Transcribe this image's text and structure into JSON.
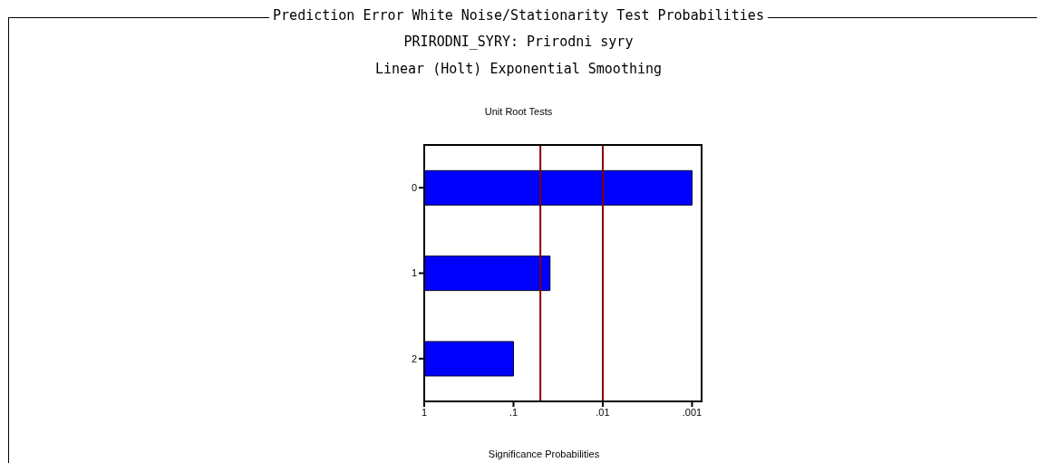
{
  "chart_data": {
    "type": "bar",
    "orientation": "horizontal",
    "title": "Prediction Error White Noise/Stationarity Test Probabilities",
    "subtitle": "PRIRODNI_SYRY: Prirodni syry",
    "annotations": [
      "Linear (Holt) Exponential Smoothing",
      "Unit Root Tests"
    ],
    "xlabel": "Significance Probabilities",
    "categories": [
      "0",
      "1",
      "2"
    ],
    "base": [
      1,
      1,
      1
    ],
    "values": [
      -0.999,
      -0.961,
      -0.9
    ],
    "color": "#0000ff",
    "log": "x",
    "xlim": [
      1,
      0.0008
    ],
    "xticks": [
      1,
      {
        "value": 0.1,
        "label": ".1"
      },
      {
        "value": 0.01,
        "label": ".01"
      },
      {
        "value": 0.001,
        "label": ".001"
      }
    ],
    "ref_lines": [
      {
        "axis": "x",
        "value": 0.05,
        "color": "#800000"
      },
      {
        "axis": "x",
        "value": 0.01,
        "color": "#800000"
      }
    ]
  }
}
